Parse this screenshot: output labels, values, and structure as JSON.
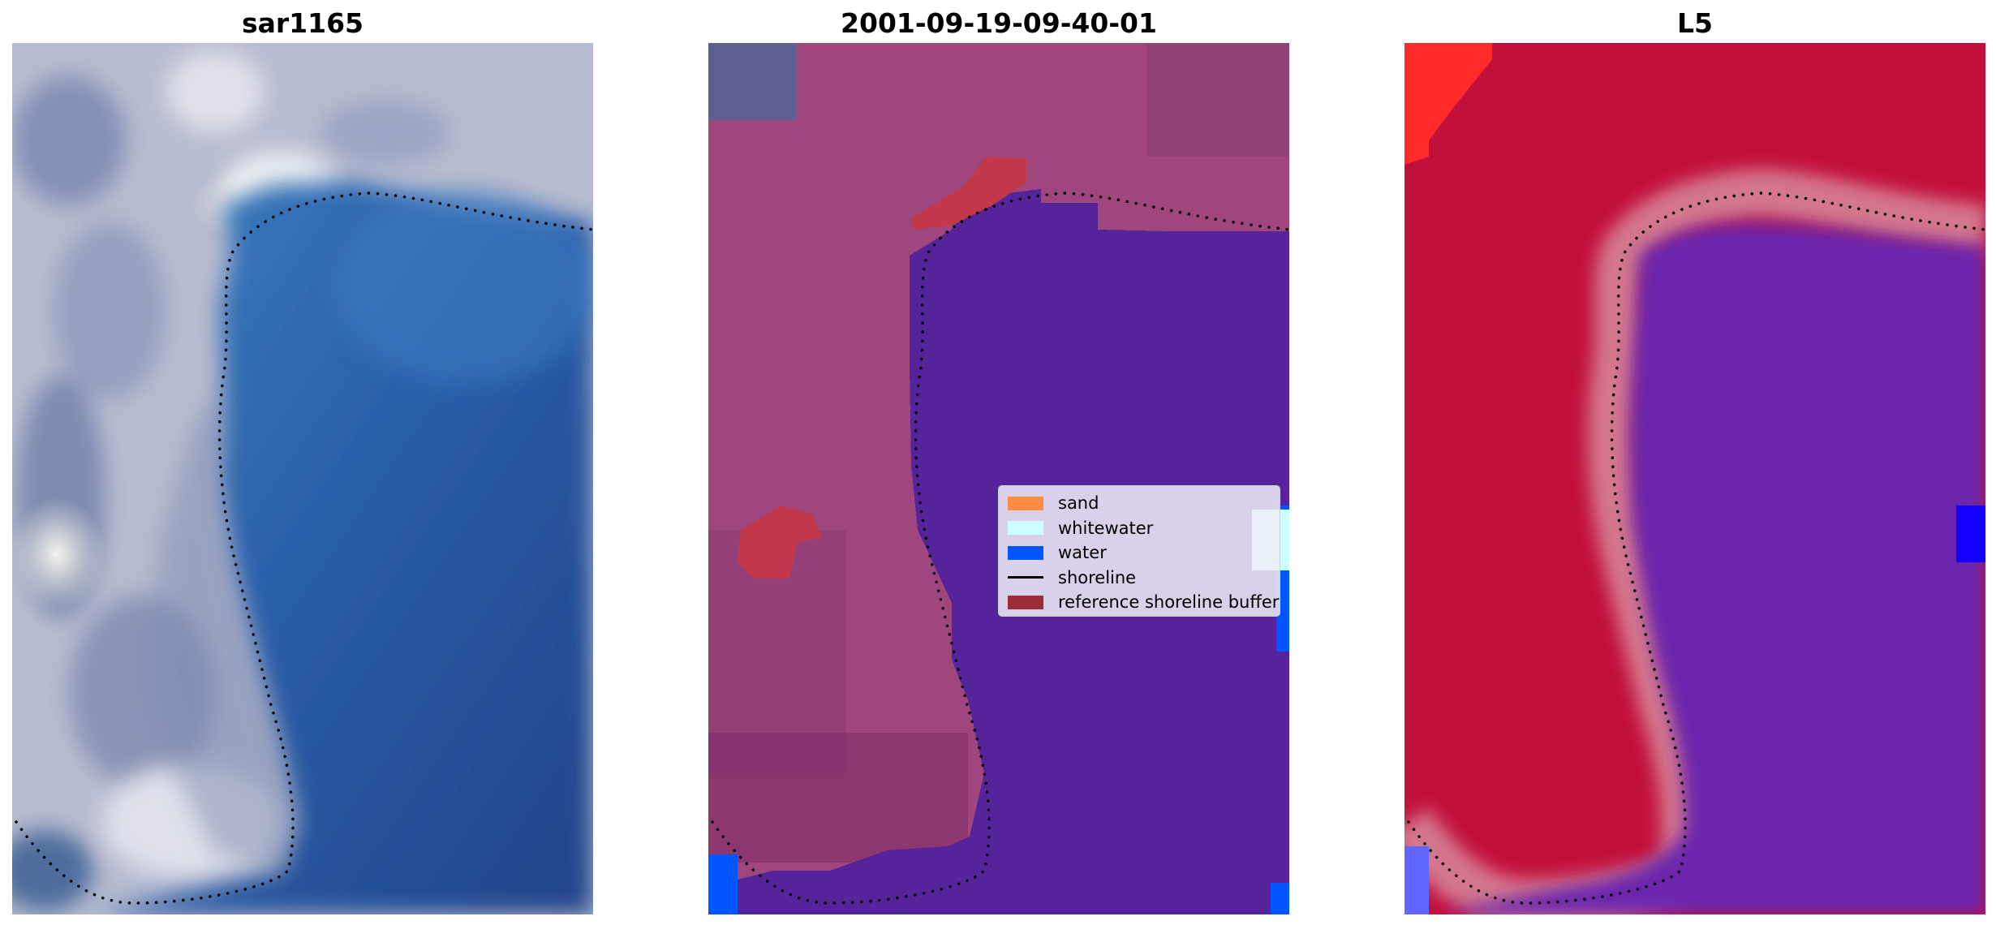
{
  "panels": [
    {
      "title": "sar1165"
    },
    {
      "title": "2001-09-19-09-40-01"
    },
    {
      "title": "L5"
    }
  ],
  "legend": {
    "items": [
      {
        "label": "sand",
        "color": "#ff8c42",
        "kind": "patch"
      },
      {
        "label": "whitewater",
        "color": "#ccffff",
        "kind": "patch"
      },
      {
        "label": "water",
        "color": "#0057ff",
        "kind": "patch"
      },
      {
        "label": "shoreline",
        "color": "#000000",
        "kind": "line"
      },
      {
        "label": "reference shoreline buffer",
        "color": "#9b2d3a",
        "kind": "patch"
      }
    ]
  },
  "colors": {
    "rgb_water": "#2a5fa8",
    "rgb_land": "#b9bdd0",
    "class_land": "#a0467e",
    "class_water": "#55239a",
    "buffer": "#c0384a",
    "l5_land": "#c2103c",
    "l5_water": "#6c25ad",
    "shoreline_dots": "#000000"
  }
}
